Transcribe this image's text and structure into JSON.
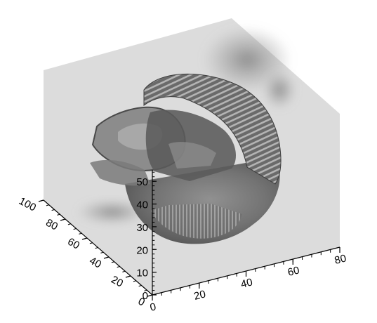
{
  "figure": {
    "type": "3d-volume-rendering",
    "background_color": "#ffffff",
    "box_fill_color": "#dcdcdc",
    "volume_color": "#6e6e6e"
  },
  "axes": {
    "x": {
      "ticks": [
        "0",
        "20",
        "40",
        "60",
        "80"
      ],
      "range": [
        0,
        80
      ]
    },
    "y": {
      "ticks": [
        "0",
        "20",
        "40",
        "60",
        "80",
        "100"
      ],
      "range": [
        0,
        100
      ]
    },
    "z": {
      "ticks": [
        "0",
        "10",
        "20",
        "30",
        "40",
        "50"
      ],
      "range": [
        0,
        55
      ]
    }
  }
}
